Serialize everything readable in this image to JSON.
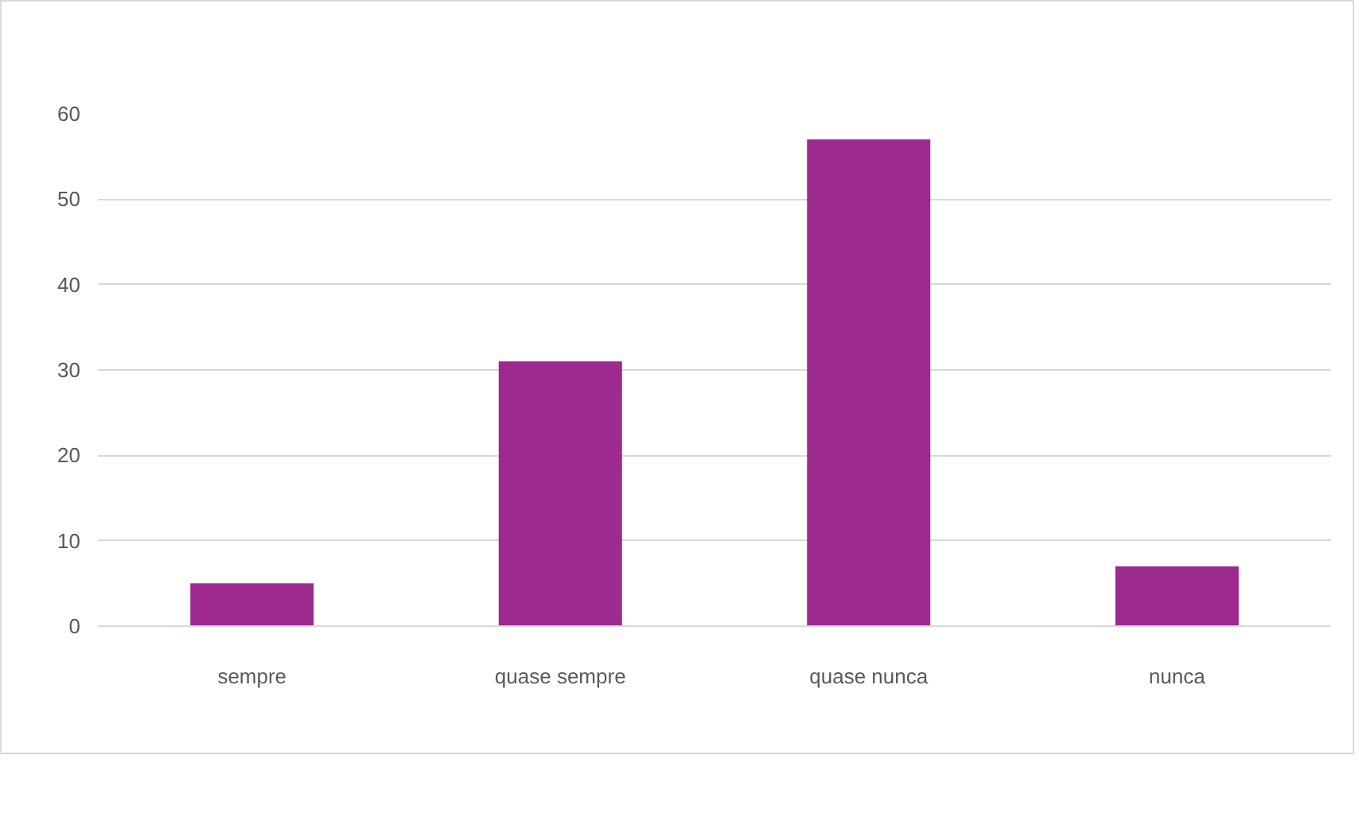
{
  "chart_data": {
    "type": "bar",
    "categories": [
      "sempre",
      "quase sempre",
      "quase nunca",
      "nunca"
    ],
    "series": [
      {
        "color": "#9c2a8f",
        "values": [
          5,
          31,
          57,
          7
        ]
      }
    ],
    "ylim": [
      0,
      60
    ],
    "yticks": [
      0,
      10,
      20,
      30,
      40,
      50,
      60
    ],
    "grid": "y"
  }
}
